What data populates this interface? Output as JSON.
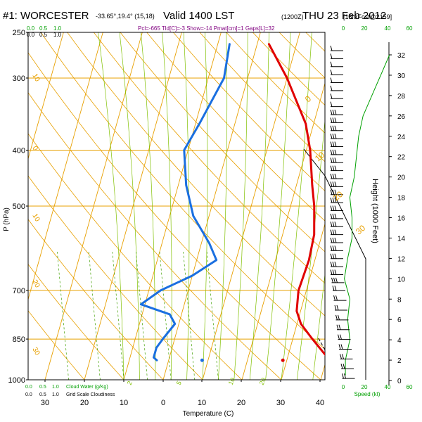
{
  "header": {
    "title_station": "#1: WORCESTER",
    "coords": "-33.65°,19.4° (15,18)",
    "valid": "Valid 1400 LST",
    "valid_z": "(1200Z)",
    "date": "THU 23 Feb 2012",
    "forecast": "[18hrFcst@2159]",
    "parcel_params": "Pcl=-665 Tld[C]=-3 Show=-14 Pmat[cm]=1 Gaps[L]=32"
  },
  "colors": {
    "temperature": "#e00000",
    "dewpoint": "#1a6fe0",
    "isotherms_isobars": "#e8a000",
    "dry_adiabats": "#e8a000",
    "moist_adiabats": "#80c000",
    "mixing_ratio": "#40a000",
    "wind_speed_profile": "#00a000",
    "wind_barbs": "#000000",
    "green_labels": "#00a000"
  },
  "chart_data": {
    "type": "line",
    "subtype": "skew-T log-P sounding",
    "xlabel": "Temperature (C)",
    "ylabel": "P (hPa)",
    "right_axis_label": "Height (1000 Feet)",
    "x_ticks": [
      "30",
      "20",
      "10",
      "0",
      "10",
      "20",
      "30",
      "40"
    ],
    "x_range": [
      -30,
      45
    ],
    "p_ticks": [
      250,
      300,
      400,
      500,
      700,
      850,
      1000
    ],
    "p_range": [
      250,
      1030
    ],
    "p_scale": "log",
    "height_ticks": [
      0,
      2,
      4,
      6,
      8,
      10,
      12,
      14,
      16,
      18,
      20,
      22,
      24,
      26,
      28,
      30,
      32
    ],
    "dry_adiabat_labels": [
      "0",
      "10",
      "20",
      "30"
    ],
    "moist_adiabat_labels": [
      "2",
      "5",
      "10",
      "20"
    ],
    "isotherm_labels_left": [
      "10",
      "0",
      "10",
      "20",
      "30"
    ],
    "series": [
      {
        "name": "Temperature",
        "points": [
          [
            3,
            262
          ],
          [
            10,
            300
          ],
          [
            18,
            360
          ],
          [
            21,
            400
          ],
          [
            24,
            460
          ],
          [
            26,
            500
          ],
          [
            28,
            560
          ],
          [
            28.5,
            620
          ],
          [
            28,
            700
          ],
          [
            29,
            760
          ],
          [
            31,
            800
          ],
          [
            35,
            850
          ],
          [
            39,
            900
          ],
          [
            41,
            925
          ]
        ]
      },
      {
        "name": "Dewpoint",
        "points": [
          [
            -7,
            262
          ],
          [
            -6,
            300
          ],
          [
            -9,
            360
          ],
          [
            -11,
            400
          ],
          [
            -8,
            460
          ],
          [
            -4,
            520
          ],
          [
            2,
            580
          ],
          [
            5,
            620
          ],
          [
            0,
            660
          ],
          [
            -7,
            700
          ],
          [
            -11,
            740
          ],
          [
            -3,
            770
          ],
          [
            -1,
            800
          ],
          [
            -3,
            850
          ],
          [
            -4,
            880
          ],
          [
            -4,
            915
          ],
          [
            -3,
            925
          ]
        ]
      },
      {
        "name": "Parcel",
        "points": [
          [
            36.5,
            848
          ],
          [
            38.5,
            880
          ],
          [
            41,
            925
          ]
        ]
      }
    ],
    "surface_points": [
      {
        "name": "Dewpoint surface",
        "t": 8.5,
        "p": 925
      },
      {
        "name": "Temperature surface",
        "t": 29,
        "p": 925
      }
    ],
    "wind_profile": {
      "speed_axis_label": "Speed (kt)",
      "speed_ticks": [
        "0",
        "20",
        "40",
        "60"
      ],
      "heights_kft": [
        0.5,
        2,
        4,
        6,
        8,
        10,
        12,
        14,
        16,
        18,
        20,
        22,
        24,
        26,
        28,
        30,
        32
      ],
      "speeds_kt": [
        2,
        2,
        6,
        4,
        6,
        1,
        4,
        8,
        8,
        6,
        10,
        12,
        14,
        18,
        26,
        34,
        42
      ],
      "barb_count": 40
    },
    "top_left_scales": [
      {
        "labels": [
          "0.0",
          "0.5",
          "1.0"
        ]
      },
      {
        "labels": [
          "0.0",
          "0.5",
          "1.0"
        ]
      }
    ],
    "bottom_left_scales": [
      {
        "labels": [
          "0.0",
          "0.5",
          "1.0"
        ],
        "title": "Cloud Water (g/Kg)"
      },
      {
        "labels": [
          "0.0",
          "0.5",
          "1.0"
        ],
        "title": "Grid Scale Cloudiness"
      }
    ]
  }
}
